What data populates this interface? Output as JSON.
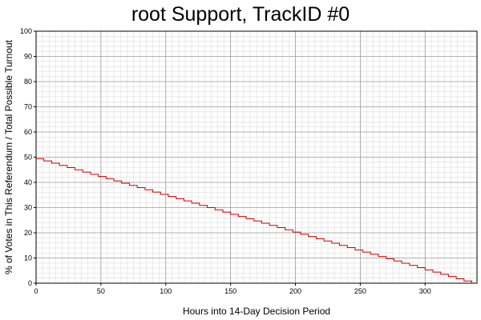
{
  "chart_data": {
    "type": "line",
    "title": "root Support, TrackID #0",
    "xlabel": "Hours into 14-Day Decision Period",
    "ylabel": "% of Votes in This Referendum / Total Possible Turnout",
    "xlim": [
      0,
      340
    ],
    "ylim": [
      0,
      100
    ],
    "x_ticks": [
      0,
      50,
      100,
      150,
      200,
      250,
      300
    ],
    "y_ticks": [
      0,
      10,
      20,
      30,
      40,
      50,
      60,
      70,
      80,
      90,
      100
    ],
    "x_tick_labels": [
      "0",
      "50",
      "100",
      "150",
      "200",
      "250",
      "300"
    ],
    "y_tick_labels": [
      "0",
      "10",
      "20",
      "30",
      "40",
      "50",
      "60",
      "70",
      "80",
      "90",
      "100"
    ],
    "grid": true,
    "line_style": "step",
    "series": [
      {
        "color": "#cc0000",
        "points": [
          [
            0,
            49.4
          ],
          [
            336,
            0
          ],
          [
            340,
            0
          ]
        ]
      }
    ]
  }
}
